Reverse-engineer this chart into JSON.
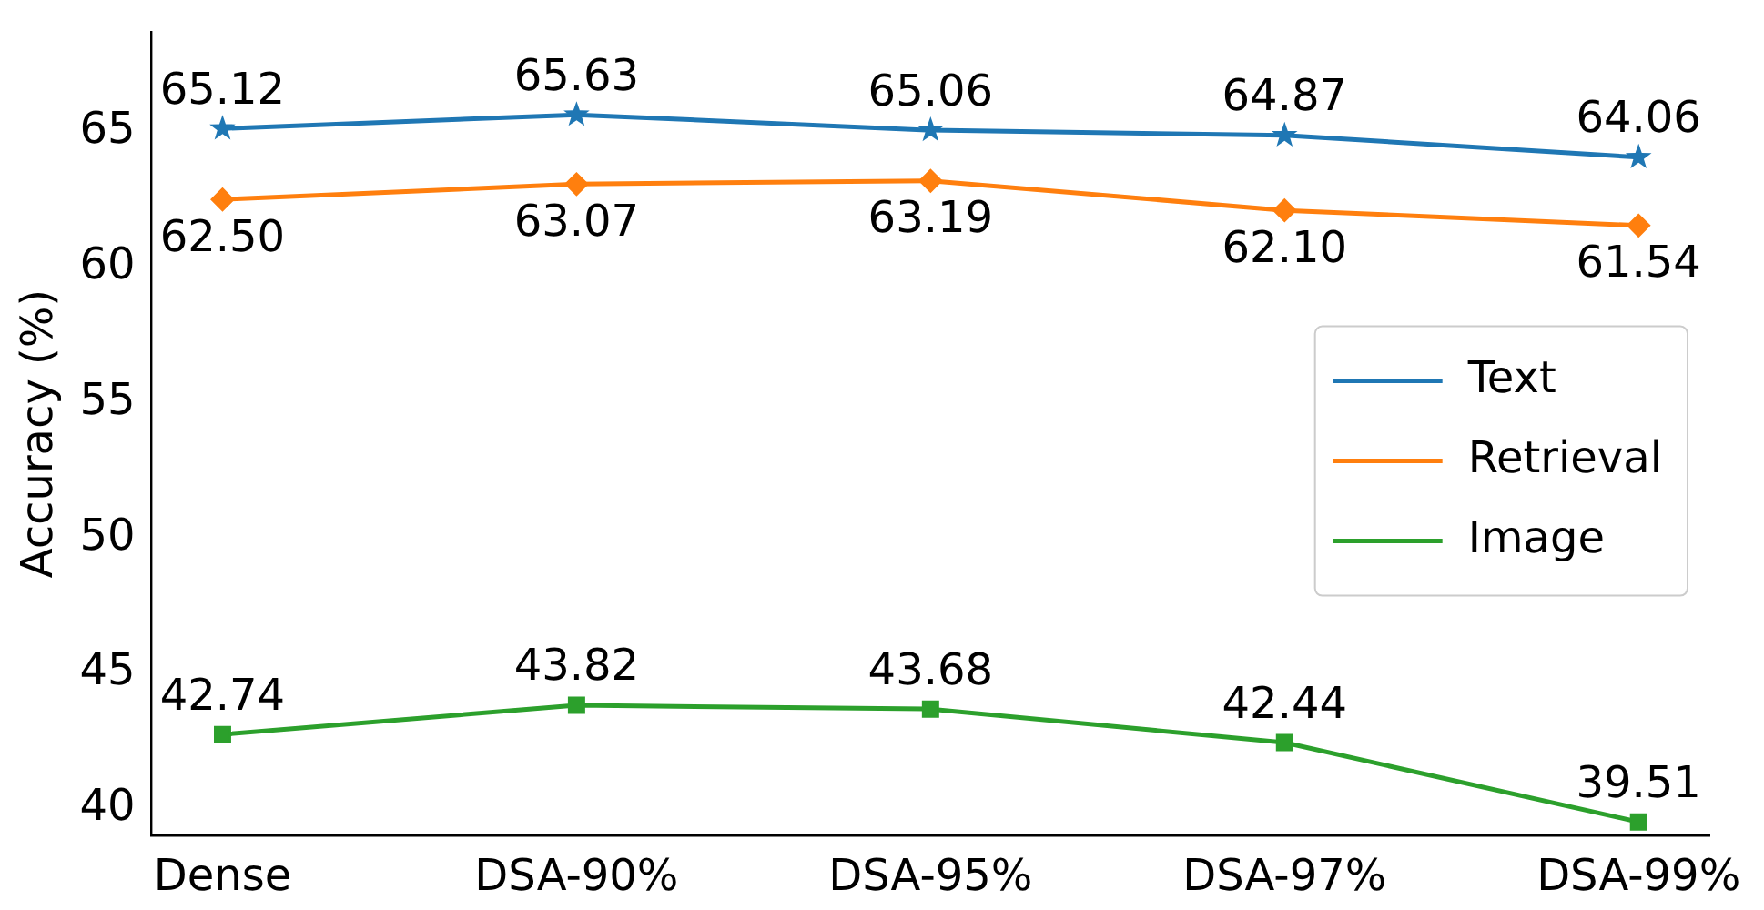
{
  "chart_data": {
    "type": "line",
    "ylabel": "Accuracy (%)",
    "categories": [
      "Dense",
      "DSA-90%",
      "DSA-95%",
      "DSA-97%",
      "DSA-99%"
    ],
    "series": [
      {
        "name": "Text",
        "color": "#1f77b4",
        "marker": "star",
        "values": [
          65.12,
          65.63,
          65.06,
          64.87,
          64.06
        ]
      },
      {
        "name": "Retrieval",
        "color": "#ff7f0e",
        "marker": "diamond",
        "values": [
          62.5,
          63.07,
          63.19,
          62.1,
          61.54
        ],
        "value_labels": [
          "62.50",
          "63.07",
          "63.19",
          "62.10",
          "61.54"
        ]
      },
      {
        "name": "Image",
        "color": "#2ca02c",
        "marker": "square",
        "values": [
          42.74,
          43.82,
          43.68,
          42.44,
          39.51
        ]
      }
    ],
    "ylim": [
      39.0,
      68.7
    ],
    "yticks": [
      40,
      45,
      50,
      55,
      60,
      65
    ],
    "grid": false,
    "legend": "right",
    "data_labels": true
  }
}
